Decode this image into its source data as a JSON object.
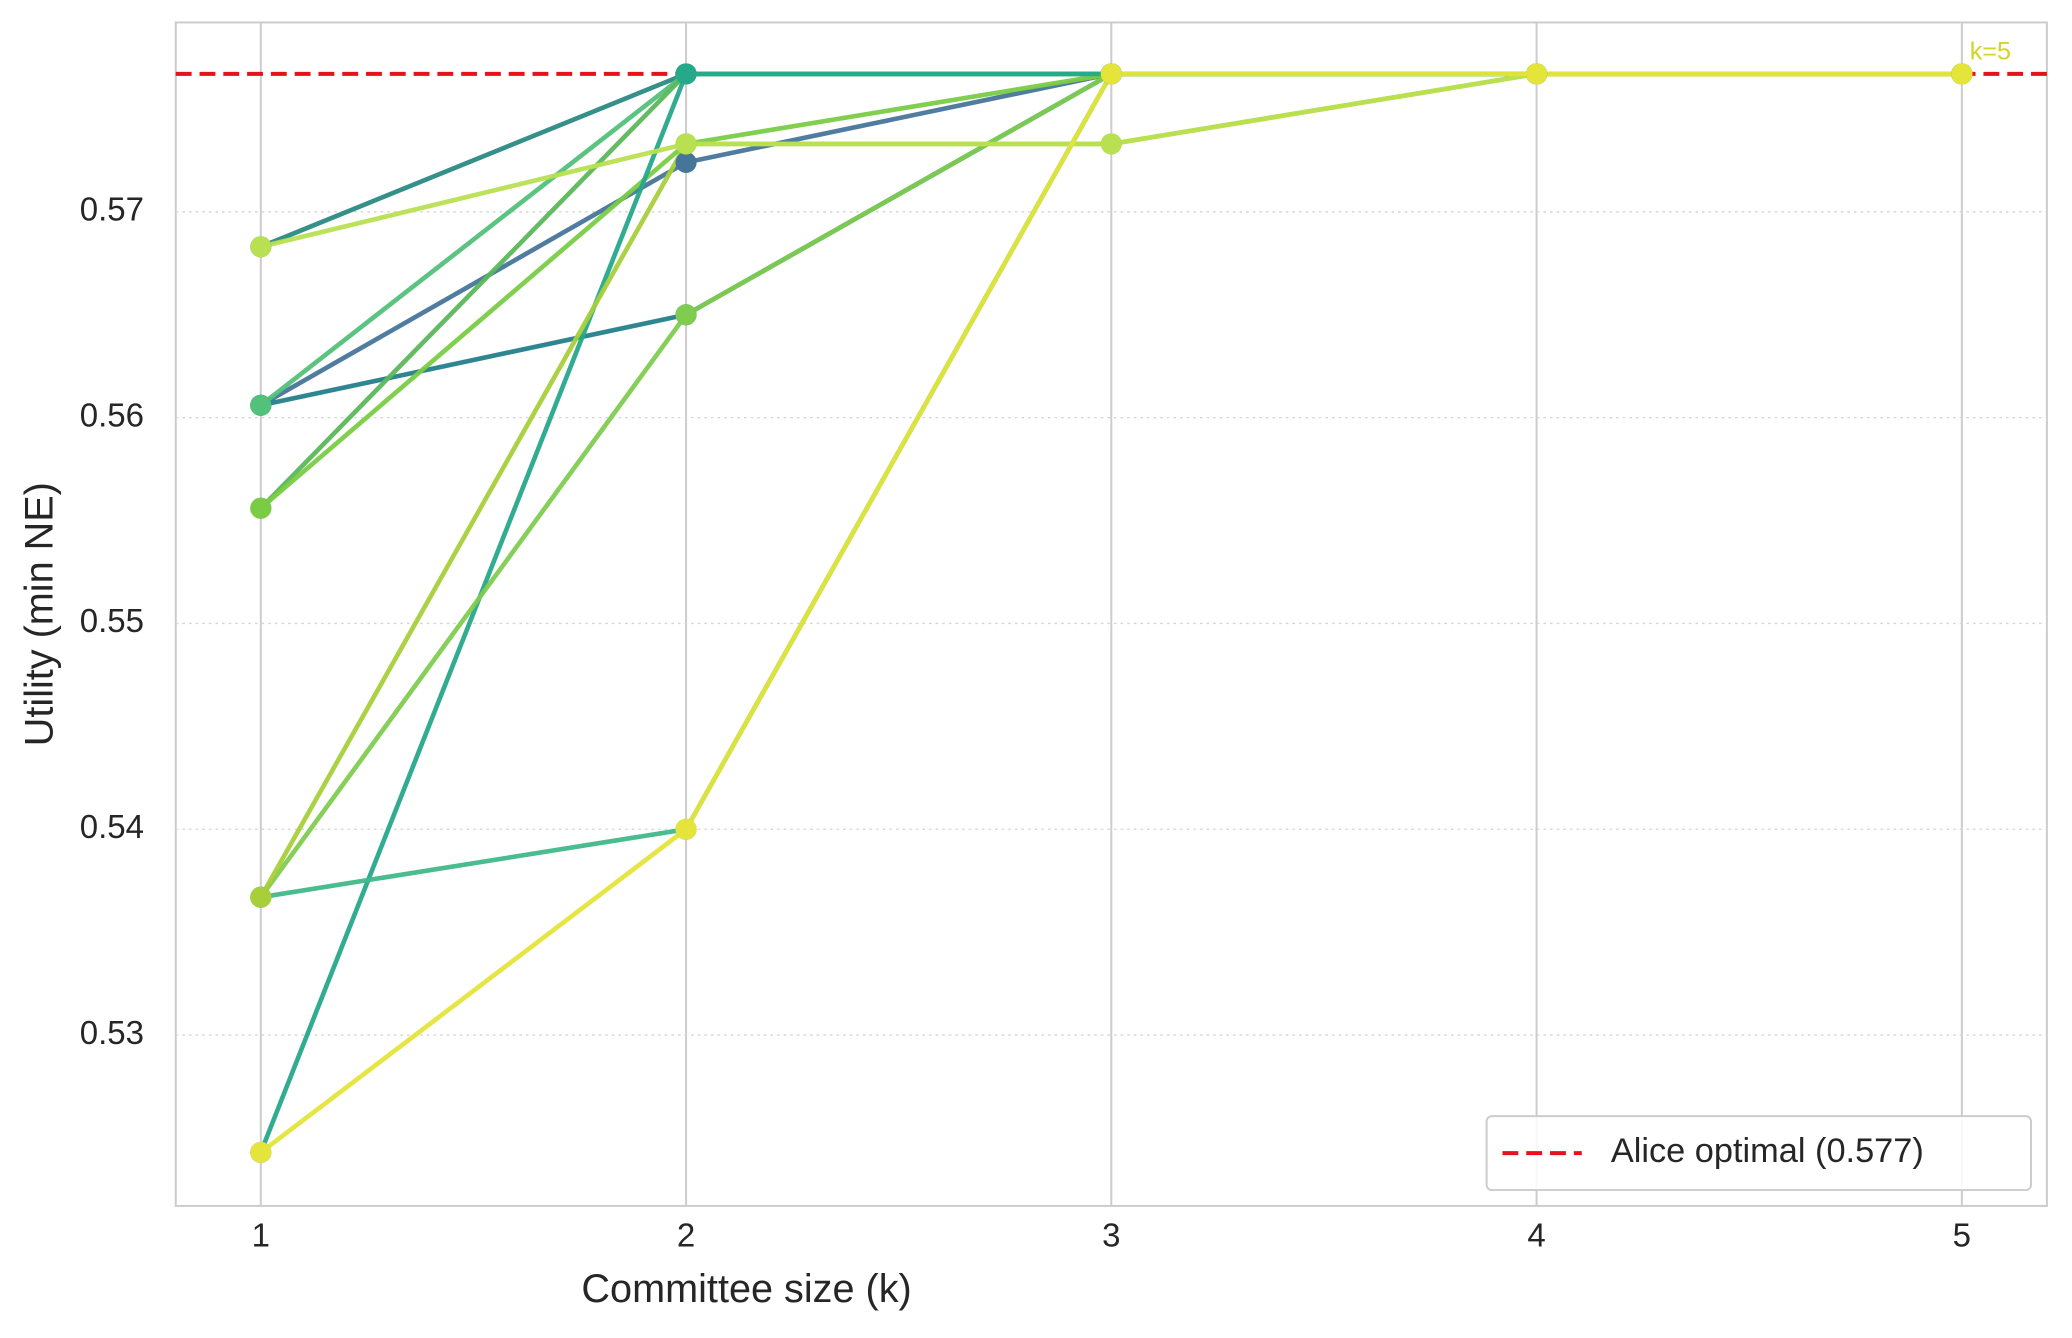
{
  "chart_data": {
    "type": "line",
    "x_label": "Committee size (k)",
    "y_label": "Utility (min NE)",
    "x": [
      1,
      2,
      3,
      4,
      5
    ],
    "xlim": [
      0.8,
      5.2
    ],
    "xticks": [
      1,
      2,
      3,
      4,
      5
    ],
    "ylim": [
      0.5217,
      0.5792
    ],
    "yticks": [
      0.53,
      0.54,
      0.55,
      0.56,
      0.57
    ],
    "grid": true,
    "series": [
      {
        "color": "#2a8a84",
        "values": [
          0.5683,
          0.5767,
          0.5767,
          0.5767,
          0.5767
        ]
      },
      {
        "color": "#46759a",
        "values": [
          0.5606,
          0.5724,
          0.5767,
          0.5767,
          0.5767
        ]
      },
      {
        "color": "#23818a",
        "values": [
          0.5606,
          0.565,
          0.5767,
          0.5767,
          0.5767
        ]
      },
      {
        "color": "#52c17a",
        "values": [
          0.5606,
          0.5767,
          0.5767,
          0.5767,
          0.5767
        ]
      },
      {
        "color": "#5cb85a",
        "values": [
          0.5556,
          0.5767,
          0.5767,
          0.5767,
          0.5767
        ]
      },
      {
        "color": "#7acc45",
        "values": [
          0.5556,
          0.5733,
          0.5767,
          0.5767,
          0.5767
        ]
      },
      {
        "color": "#26a88a",
        "values": [
          0.5243,
          0.5767,
          0.5767,
          0.5767,
          0.5767
        ]
      },
      {
        "color": "#40b88a",
        "values": [
          0.5367,
          0.54,
          0.5767,
          0.5767,
          0.5767
        ]
      },
      {
        "color": "#7fcc50",
        "values": [
          0.5367,
          0.565,
          0.5767,
          0.5767,
          0.5767
        ]
      },
      {
        "color": "#a8cf3a",
        "values": [
          0.5367,
          0.5733,
          0.5733,
          0.5767,
          0.5767
        ]
      },
      {
        "color": "#b8e050",
        "values": [
          0.5683,
          0.5733,
          0.5733,
          0.5767,
          0.5767
        ]
      },
      {
        "color": "#e4e43a",
        "values": [
          0.5243,
          0.54,
          0.5767,
          0.5767,
          0.5767
        ]
      }
    ],
    "hline": {
      "value": 0.5767,
      "label": "Alice optimal (0.577)",
      "color": "#e8101a"
    },
    "annotation": {
      "text": "k=5",
      "color": "#d4d424"
    },
    "legend": "lower right"
  }
}
